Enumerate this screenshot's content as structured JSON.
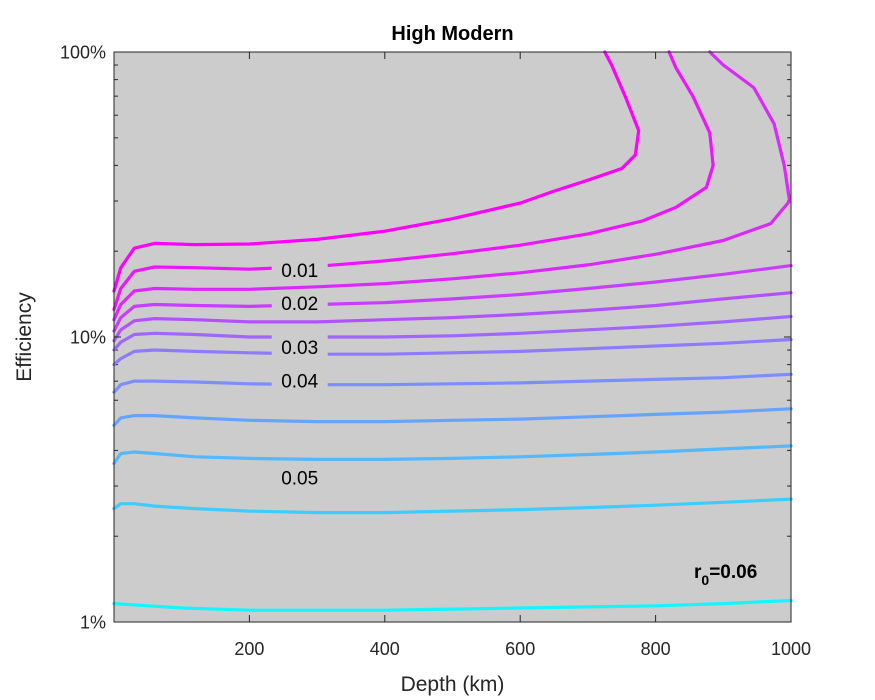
{
  "chart_data": {
    "type": "contour",
    "title": "High Modern",
    "xlabel": "Depth (km)",
    "ylabel": "Efficiency",
    "xlim": [
      0,
      1000
    ],
    "ylim": [
      1,
      100
    ],
    "y_scale": "log",
    "x_ticks": [
      200,
      400,
      600,
      800,
      1000
    ],
    "x_tick_labels": [
      "200",
      "400",
      "600",
      "800",
      "1000"
    ],
    "y_ticks": [
      1,
      10,
      100
    ],
    "y_tick_labels": [
      "1%",
      "10%",
      "100%"
    ],
    "background_color": "#cccccc",
    "annotation": {
      "main": "r",
      "sub": "0",
      "value": "=0.06"
    },
    "levels": [
      {
        "value": 0.005,
        "color": "#ff00ff",
        "label": "",
        "points": [
          [
            0,
            14.5
          ],
          [
            10,
            17.5
          ],
          [
            30,
            20.5
          ],
          [
            60,
            21.3
          ],
          [
            120,
            21.1
          ],
          [
            200,
            21.2
          ],
          [
            300,
            22.0
          ],
          [
            400,
            23.5
          ],
          [
            500,
            26.0
          ],
          [
            600,
            29.5
          ],
          [
            650,
            32.5
          ],
          [
            700,
            35.5
          ],
          [
            750,
            39.0
          ],
          [
            770,
            43.5
          ],
          [
            775,
            53.0
          ],
          [
            755,
            70.0
          ],
          [
            735,
            90.0
          ],
          [
            725,
            100.0
          ]
        ]
      },
      {
        "value": 0.01,
        "color": "#ef14ff",
        "label": "0.01",
        "label_at": [
          230,
          17.1
        ],
        "points": [
          [
            0,
            12.5
          ],
          [
            10,
            14.8
          ],
          [
            30,
            17.0
          ],
          [
            60,
            17.6
          ],
          [
            120,
            17.5
          ],
          [
            200,
            17.3
          ],
          [
            300,
            17.7
          ],
          [
            400,
            18.5
          ],
          [
            500,
            19.6
          ],
          [
            600,
            21.0
          ],
          [
            700,
            23.0
          ],
          [
            780,
            25.5
          ],
          [
            830,
            28.5
          ],
          [
            875,
            33.5
          ],
          [
            885,
            40.0
          ],
          [
            880,
            52.0
          ],
          [
            855,
            70.0
          ],
          [
            830,
            88.0
          ],
          [
            820,
            100.0
          ]
        ]
      },
      {
        "value": 0.015,
        "color": "#db28ff",
        "label": "",
        "points": [
          [
            0,
            11.5
          ],
          [
            10,
            13.0
          ],
          [
            30,
            14.5
          ],
          [
            60,
            14.8
          ],
          [
            120,
            14.7
          ],
          [
            200,
            14.7
          ],
          [
            300,
            15.0
          ],
          [
            400,
            15.4
          ],
          [
            500,
            16.0
          ],
          [
            600,
            16.8
          ],
          [
            700,
            17.9
          ],
          [
            800,
            19.5
          ],
          [
            900,
            21.8
          ],
          [
            970,
            25.0
          ],
          [
            998,
            30.0
          ],
          [
            990,
            40.0
          ],
          [
            975,
            56.0
          ],
          [
            945,
            75.0
          ],
          [
            900,
            90.0
          ],
          [
            880,
            100.0
          ]
        ]
      },
      {
        "value": 0.02,
        "color": "#c83dff",
        "label": "0.02",
        "label_at": [
          230,
          13.1
        ],
        "points": [
          [
            0,
            10.5
          ],
          [
            10,
            11.7
          ],
          [
            30,
            12.8
          ],
          [
            60,
            13.0
          ],
          [
            120,
            12.9
          ],
          [
            200,
            12.8
          ],
          [
            300,
            13.0
          ],
          [
            400,
            13.2
          ],
          [
            500,
            13.6
          ],
          [
            600,
            14.1
          ],
          [
            700,
            14.8
          ],
          [
            800,
            15.6
          ],
          [
            900,
            16.6
          ],
          [
            1000,
            17.8
          ]
        ]
      },
      {
        "value": 0.025,
        "color": "#b351ff",
        "label": "",
        "points": [
          [
            0,
            9.7
          ],
          [
            10,
            10.6
          ],
          [
            30,
            11.4
          ],
          [
            60,
            11.6
          ],
          [
            120,
            11.5
          ],
          [
            200,
            11.3
          ],
          [
            300,
            11.3
          ],
          [
            400,
            11.5
          ],
          [
            500,
            11.7
          ],
          [
            600,
            12.0
          ],
          [
            700,
            12.4
          ],
          [
            800,
            12.9
          ],
          [
            900,
            13.6
          ],
          [
            1000,
            14.3
          ]
        ]
      },
      {
        "value": 0.03,
        "color": "#a066ff",
        "label": "0.03",
        "label_at": [
          230,
          9.2
        ],
        "points": [
          [
            0,
            9.0
          ],
          [
            10,
            9.6
          ],
          [
            30,
            10.2
          ],
          [
            60,
            10.3
          ],
          [
            120,
            10.2
          ],
          [
            200,
            10.0
          ],
          [
            300,
            10.0
          ],
          [
            400,
            10.0
          ],
          [
            500,
            10.1
          ],
          [
            600,
            10.3
          ],
          [
            700,
            10.6
          ],
          [
            800,
            10.9
          ],
          [
            900,
            11.3
          ],
          [
            1000,
            11.8
          ]
        ]
      },
      {
        "value": 0.035,
        "color": "#8e7aff",
        "label": "",
        "points": [
          [
            0,
            8.0
          ],
          [
            10,
            8.4
          ],
          [
            30,
            8.9
          ],
          [
            60,
            9.0
          ],
          [
            120,
            8.9
          ],
          [
            200,
            8.8
          ],
          [
            300,
            8.7
          ],
          [
            400,
            8.7
          ],
          [
            500,
            8.8
          ],
          [
            600,
            8.9
          ],
          [
            700,
            9.1
          ],
          [
            800,
            9.3
          ],
          [
            900,
            9.5
          ],
          [
            1000,
            9.8
          ]
        ]
      },
      {
        "value": 0.04,
        "color": "#7b8eff",
        "label": "0.04",
        "label_at": [
          230,
          7.0
        ],
        "points": [
          [
            0,
            6.4
          ],
          [
            10,
            6.8
          ],
          [
            30,
            7.0
          ],
          [
            60,
            7.0
          ],
          [
            120,
            6.95
          ],
          [
            200,
            6.85
          ],
          [
            300,
            6.8
          ],
          [
            400,
            6.8
          ],
          [
            500,
            6.85
          ],
          [
            600,
            6.9
          ],
          [
            700,
            7.0
          ],
          [
            800,
            7.1
          ],
          [
            900,
            7.2
          ],
          [
            1000,
            7.4
          ]
        ]
      },
      {
        "value": 0.045,
        "color": "#66a3ff",
        "label": "",
        "points": [
          [
            0,
            4.9
          ],
          [
            10,
            5.2
          ],
          [
            30,
            5.3
          ],
          [
            60,
            5.3
          ],
          [
            120,
            5.2
          ],
          [
            200,
            5.1
          ],
          [
            300,
            5.05
          ],
          [
            400,
            5.05
          ],
          [
            500,
            5.1
          ],
          [
            600,
            5.15
          ],
          [
            700,
            5.25
          ],
          [
            800,
            5.35
          ],
          [
            900,
            5.45
          ],
          [
            1000,
            5.6
          ]
        ]
      },
      {
        "value": 0.05,
        "color": "#52b8ff",
        "label": "0.05",
        "label_at": [
          230,
          3.2
        ],
        "points": [
          [
            0,
            3.6
          ],
          [
            10,
            3.9
          ],
          [
            30,
            3.95
          ],
          [
            60,
            3.9
          ],
          [
            120,
            3.8
          ],
          [
            200,
            3.75
          ],
          [
            300,
            3.72
          ],
          [
            400,
            3.72
          ],
          [
            500,
            3.75
          ],
          [
            600,
            3.8
          ],
          [
            700,
            3.87
          ],
          [
            800,
            3.95
          ],
          [
            900,
            4.05
          ],
          [
            1000,
            4.15
          ]
        ]
      },
      {
        "value": 0.055,
        "color": "#3dccff",
        "label": "",
        "points": [
          [
            0,
            2.5
          ],
          [
            10,
            2.6
          ],
          [
            30,
            2.6
          ],
          [
            60,
            2.55
          ],
          [
            120,
            2.5
          ],
          [
            200,
            2.45
          ],
          [
            300,
            2.42
          ],
          [
            400,
            2.42
          ],
          [
            500,
            2.45
          ],
          [
            600,
            2.48
          ],
          [
            700,
            2.52
          ],
          [
            800,
            2.57
          ],
          [
            900,
            2.63
          ],
          [
            1000,
            2.7
          ]
        ]
      },
      {
        "value": 0.06,
        "color": "#14f5ff",
        "label": "",
        "points": [
          [
            0,
            1.16
          ],
          [
            50,
            1.14
          ],
          [
            100,
            1.12
          ],
          [
            200,
            1.1
          ],
          [
            300,
            1.1
          ],
          [
            400,
            1.1
          ],
          [
            500,
            1.11
          ],
          [
            600,
            1.12
          ],
          [
            700,
            1.13
          ],
          [
            800,
            1.14
          ],
          [
            900,
            1.16
          ],
          [
            1000,
            1.19
          ]
        ]
      }
    ]
  }
}
